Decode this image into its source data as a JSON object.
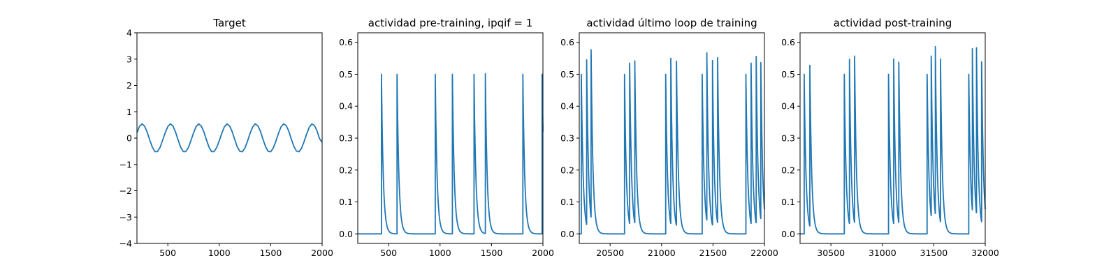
{
  "chart_data": [
    {
      "type": "line",
      "title": "Target",
      "xlim": [
        200,
        2000
      ],
      "ylim": [
        -4,
        4
      ],
      "xticks": [
        "500",
        "1000",
        "1500",
        "2000"
      ],
      "yticks": [
        "−4",
        "−3",
        "−2",
        "−1",
        "0",
        "1",
        "2",
        "3",
        "4"
      ],
      "series": [
        {
          "line_color": "#1f77b4",
          "x": [
            200,
            225,
            250,
            275,
            300,
            325,
            350,
            375,
            400,
            425,
            450,
            475,
            500,
            525,
            550,
            575,
            600,
            625,
            650,
            675,
            700,
            725,
            750,
            775,
            800,
            825,
            850,
            875,
            900,
            925,
            950,
            975,
            1000,
            1025,
            1050,
            1075,
            1100,
            1125,
            1150,
            1175,
            1200,
            1225,
            1250,
            1275,
            1300,
            1325,
            1350,
            1375,
            1400,
            1425,
            1450,
            1475,
            1500,
            1525,
            1550,
            1575,
            1600,
            1625,
            1650,
            1675,
            1700,
            1725,
            1750,
            1775,
            1800,
            1825,
            1850,
            1875,
            1900,
            1925,
            1950,
            1975,
            2000
          ],
          "y": [
            0.21,
            0.45,
            0.54,
            0.45,
            0.22,
            -0.08,
            -0.35,
            -0.51,
            -0.51,
            -0.35,
            -0.08,
            0.21,
            0.44,
            0.54,
            0.46,
            0.23,
            -0.07,
            -0.35,
            -0.51,
            -0.51,
            -0.36,
            -0.09,
            0.2,
            0.44,
            0.54,
            0.46,
            0.24,
            -0.06,
            -0.34,
            -0.51,
            -0.51,
            -0.36,
            -0.1,
            0.19,
            0.43,
            0.54,
            0.47,
            0.25,
            -0.05,
            -0.33,
            -0.5,
            -0.52,
            -0.37,
            -0.11,
            0.18,
            0.42,
            0.54,
            0.47,
            0.26,
            -0.04,
            -0.32,
            -0.5,
            -0.52,
            -0.38,
            -0.12,
            0.17,
            0.42,
            0.54,
            0.48,
            0.27,
            -0.03,
            -0.31,
            -0.49,
            -0.52,
            -0.38,
            -0.13,
            0.16,
            0.41,
            0.54,
            0.48,
            0.28,
            -0.02,
            -0.16
          ]
        }
      ]
    },
    {
      "type": "line",
      "title": "actividad pre-training, ipqif = 1",
      "xlim": [
        200,
        2000
      ],
      "ylim": [
        -0.03,
        0.63
      ],
      "xticks": [
        "500",
        "1000",
        "1500",
        "2000"
      ],
      "yticks": [
        "0.0",
        "0.1",
        "0.2",
        "0.3",
        "0.4",
        "0.5",
        "0.6"
      ],
      "baseline": 0.0,
      "decay_tau": 18,
      "series": [
        {
          "line_color": "#1f77b4",
          "spikes": [
            {
              "t": 430,
              "peak": 0.5
            },
            {
              "t": 582,
              "peak": 0.5
            },
            {
              "t": 953,
              "peak": 0.5
            },
            {
              "t": 1120,
              "peak": 0.5
            },
            {
              "t": 1330,
              "peak": 0.5
            },
            {
              "t": 1440,
              "peak": 0.502
            },
            {
              "t": 1805,
              "peak": 0.5
            },
            {
              "t": 1992,
              "peak": 0.5
            }
          ]
        }
      ]
    },
    {
      "type": "line",
      "title": "actividad último loop de training",
      "xlim": [
        20200,
        22000
      ],
      "ylim": [
        -0.03,
        0.63
      ],
      "xticks": [
        "20500",
        "21000",
        "21500",
        "22000"
      ],
      "yticks": [
        "0.0",
        "0.1",
        "0.2",
        "0.3",
        "0.4",
        "0.5",
        "0.6"
      ],
      "baseline": 0.0,
      "decay_tau": 18,
      "series": [
        {
          "line_color": "#1f77b4",
          "spikes": [
            {
              "t": 20220,
              "peak": 0.5
            },
            {
              "t": 20272,
              "peak": 0.545
            },
            {
              "t": 20315,
              "peak": 0.577
            },
            {
              "t": 20640,
              "peak": 0.5
            },
            {
              "t": 20690,
              "peak": 0.535
            },
            {
              "t": 20740,
              "peak": 0.542
            },
            {
              "t": 21040,
              "peak": 0.5
            },
            {
              "t": 21090,
              "peak": 0.55
            },
            {
              "t": 21145,
              "peak": 0.541
            },
            {
              "t": 21395,
              "peak": 0.5
            },
            {
              "t": 21440,
              "peak": 0.567
            },
            {
              "t": 21495,
              "peak": 0.543
            },
            {
              "t": 21545,
              "peak": 0.552
            },
            {
              "t": 21820,
              "peak": 0.5
            },
            {
              "t": 21870,
              "peak": 0.535
            },
            {
              "t": 21920,
              "peak": 0.556
            },
            {
              "t": 21965,
              "peak": 0.537
            }
          ]
        }
      ]
    },
    {
      "type": "line",
      "title": "actividad post-training",
      "xlim": [
        30200,
        32000
      ],
      "ylim": [
        -0.03,
        0.63
      ],
      "xticks": [
        "30500",
        "31000",
        "31500",
        "32000"
      ],
      "yticks": [
        "0.0",
        "0.1",
        "0.2",
        "0.3",
        "0.4",
        "0.5",
        "0.6"
      ],
      "baseline": 0.0,
      "decay_tau": 18,
      "series": [
        {
          "line_color": "#1f77b4",
          "spikes": [
            {
              "t": 30240,
              "peak": 0.5
            },
            {
              "t": 30295,
              "peak": 0.528
            },
            {
              "t": 30630,
              "peak": 0.5
            },
            {
              "t": 30680,
              "peak": 0.547
            },
            {
              "t": 30730,
              "peak": 0.557
            },
            {
              "t": 31060,
              "peak": 0.5
            },
            {
              "t": 31110,
              "peak": 0.548
            },
            {
              "t": 31160,
              "peak": 0.538
            },
            {
              "t": 31435,
              "peak": 0.5
            },
            {
              "t": 31475,
              "peak": 0.557
            },
            {
              "t": 31515,
              "peak": 0.587
            },
            {
              "t": 31565,
              "peak": 0.548
            },
            {
              "t": 31840,
              "peak": 0.5
            },
            {
              "t": 31875,
              "peak": 0.58
            },
            {
              "t": 31915,
              "peak": 0.583
            },
            {
              "t": 31965,
              "peak": 0.539
            }
          ]
        }
      ]
    }
  ]
}
